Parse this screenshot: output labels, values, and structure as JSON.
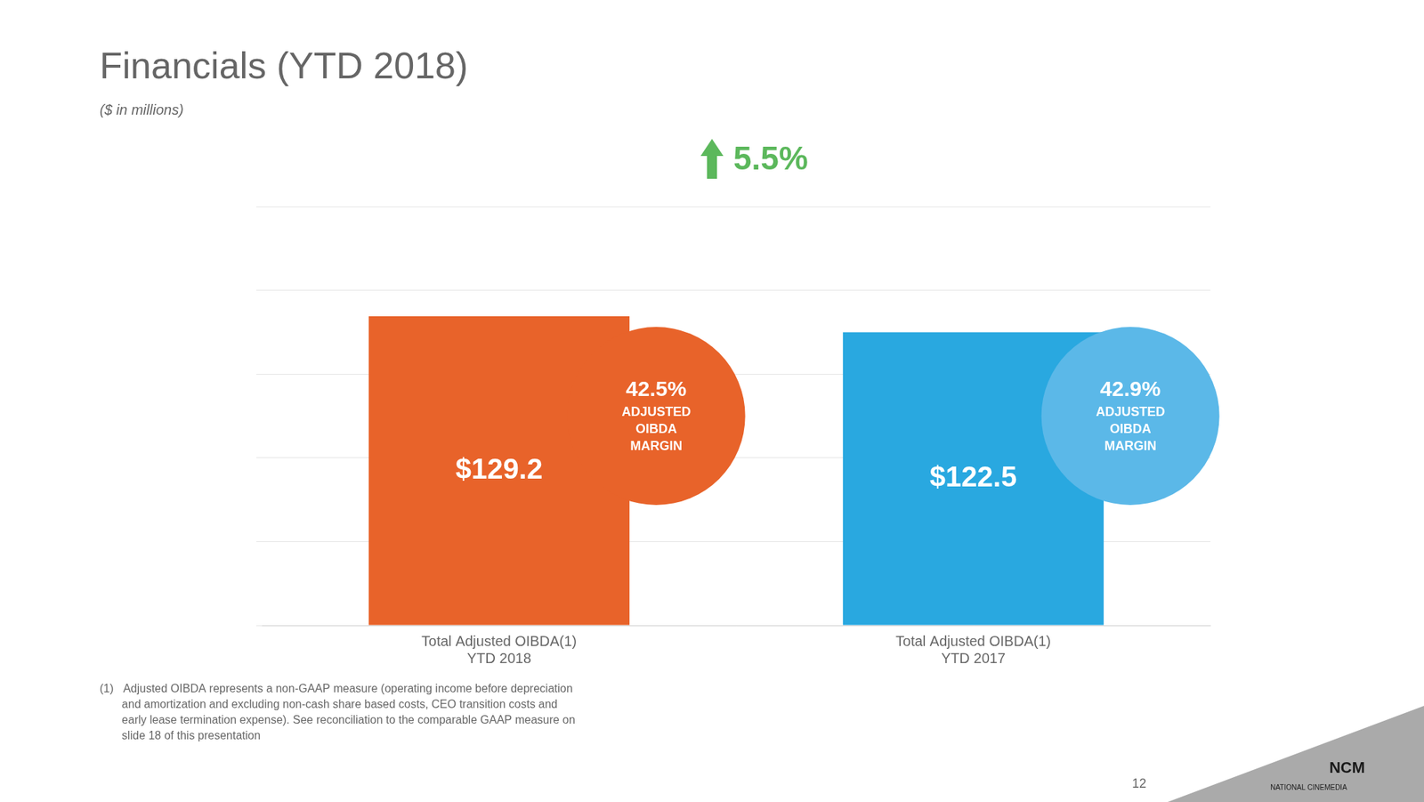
{
  "chart_data": {
    "type": "bar",
    "title": "Financials (YTD 2018)",
    "subtitle": "($ in millions)",
    "categories": [
      "Total Adjusted OIBDA(1)\nYTD 2018",
      "Total Adjusted OIBDA(1)\nYTD 2017"
    ],
    "values": [
      129.2,
      122.5
    ],
    "value_labels": [
      "$129.2",
      "$122.5"
    ],
    "colors": [
      "#E8632A",
      "#29A8E0"
    ],
    "data_labels": true,
    "ylim": [
      0,
      175
    ],
    "yticks": [
      0,
      35,
      70,
      105,
      140,
      175
    ],
    "grid": true,
    "tick_labels": "x",
    "annotations": [
      {
        "text": "42.5%\nADJUSTED\nOIBDA\nMARGIN",
        "color": "#E8632A",
        "marker": "circle"
      },
      {
        "text": "42.9%\nADJUSTED\nOIBDA\nMARGIN",
        "color": "#5BB8E8",
        "marker": "circle"
      },
      {
        "text": "5.5%",
        "color": "#5CB85C",
        "marker": "arrow"
      },
      {
        "text": "(1)   Adjusted OIBDA represents a non-GAAP measure (operating income before depreciation\n       and amortization and excluding non-cash share based costs, CEO transition costs and\n       early lease termination expense). See reconciliation to the comparable GAAP measure on\n       slide 18 of this presentation"
      },
      {
        "text": "12"
      },
      {
        "text": "NCM\nNATIONAL CINEMEDIA"
      }
    ]
  }
}
